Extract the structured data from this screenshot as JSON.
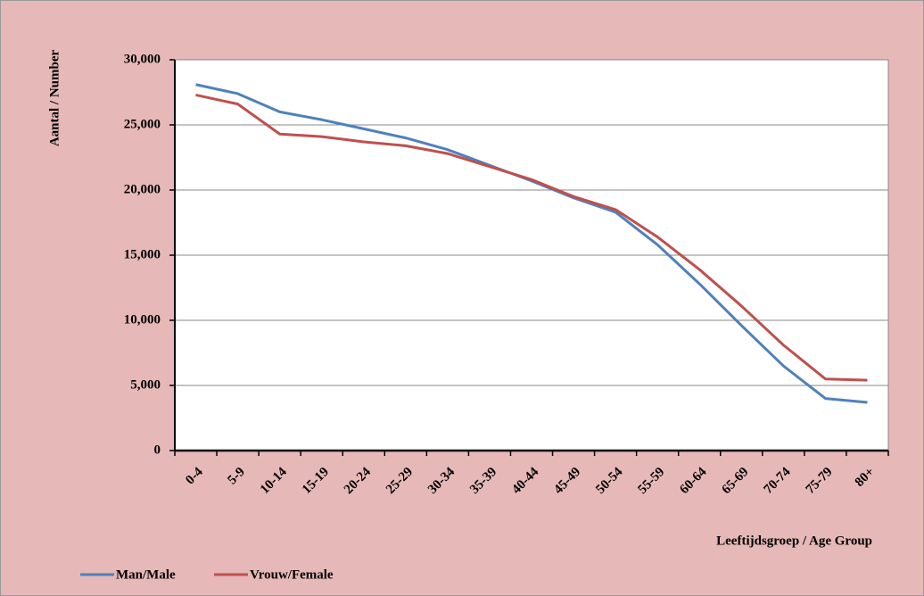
{
  "chart_data": {
    "type": "line",
    "categories": [
      "0-4",
      "5-9",
      "10-14",
      "15-19",
      "20-24",
      "25-29",
      "30-34",
      "35-39",
      "40-44",
      "45-49",
      "50-54",
      "55-59",
      "60-64",
      "65-69",
      "70-74",
      "75-79",
      "80+"
    ],
    "series": [
      {
        "name": "Man/Male",
        "color": "#4f81bd",
        "values": [
          28100,
          27400,
          26000,
          25400,
          24700,
          24000,
          23100,
          21900,
          20700,
          19400,
          18300,
          15800,
          12800,
          9600,
          6500,
          4000,
          3700
        ]
      },
      {
        "name": "Vrouw/Female",
        "color": "#c0504d",
        "values": [
          27300,
          26600,
          24300,
          24100,
          23700,
          23400,
          22800,
          21800,
          20800,
          19500,
          18500,
          16400,
          13900,
          11100,
          8100,
          5500,
          5400
        ]
      }
    ],
    "ylabel": "Aantal / Number",
    "xlabel": "Leeftijdsgroep / Age Group",
    "ylim": [
      0,
      30000
    ],
    "yticks": [
      0,
      {
        "value": 5000,
        "label": "5,000"
      },
      {
        "value": 10000,
        "label": "10,000"
      },
      {
        "value": 15000,
        "label": "15,000"
      },
      {
        "value": 20000,
        "label": "20,000"
      },
      {
        "value": 25000,
        "label": "25,000"
      },
      {
        "value": 30000,
        "label": "30,000"
      }
    ],
    "grid": true,
    "legend": "bottom"
  }
}
